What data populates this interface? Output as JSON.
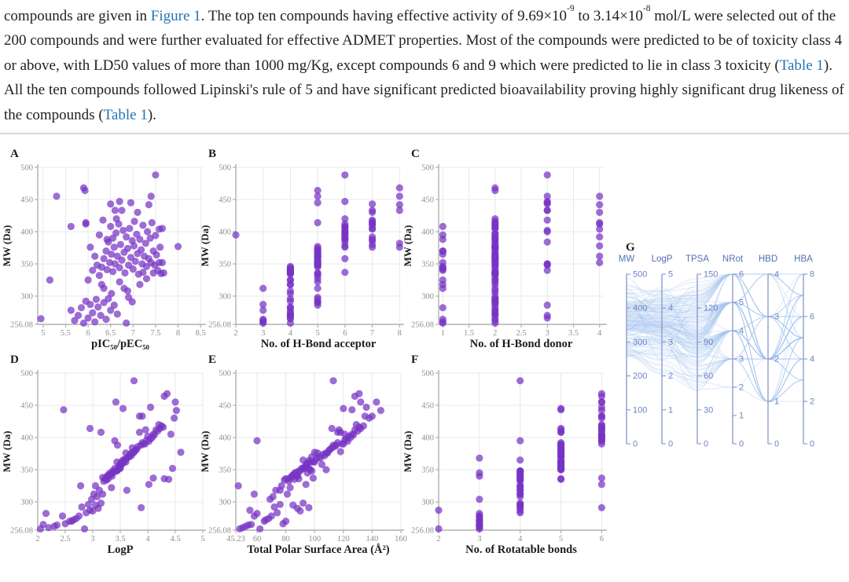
{
  "paragraph": {
    "segments": [
      {
        "text": "compounds are given in ",
        "style": "normal"
      },
      {
        "text": "Figure 1",
        "style": "link"
      },
      {
        "text": ". The top ten compounds having effective activity of 9.69×10",
        "style": "normal"
      },
      {
        "text": "-9",
        "style": "sup"
      },
      {
        "text": " to 3.14×10",
        "style": "normal"
      },
      {
        "text": "-8",
        "style": "sup"
      },
      {
        "text": " mol/L were selected out of the 200 compounds and were further evaluated for effective ADMET properties. Most of the compounds were predicted to be of toxicity class 4 or above, with LD50 values of more than 1000 mg/Kg, except compounds 6 and 9 which were predicted to lie in class 3 toxicity (",
        "style": "normal"
      },
      {
        "text": "Table 1",
        "style": "link"
      },
      {
        "text": "). All the ten compounds followed Lipinski's rule of 5 and have significant predicted bioavailability proving highly significant drug likeness of the compounds (",
        "style": "normal"
      },
      {
        "text": "Table 1",
        "style": "link"
      },
      {
        "text": ").",
        "style": "normal"
      }
    ]
  },
  "colors": {
    "link": "#2374b5",
    "text": "#212121",
    "divider": "#d9d9d9",
    "dot": "#7733c4",
    "dot_opacity": 0.72,
    "grid": "#e8e8ee",
    "spine": "#b0b0b0",
    "tick_text": "#8f8f8f",
    "title_text": "#1c1c1c",
    "pc_line": "#a6c6ee",
    "pc_line_opacity": 0.38,
    "pc_axis": "#8695cc",
    "pc_label": "#5570b8",
    "pc_tick_text": "#6d83c2"
  },
  "chart_data": {
    "type": "multi-panel-scatter-and-parallel-coordinates",
    "description": "Physicochemical properties of 200 screened compounds; panels A-F scatter MW (Da) vs property, panel G parallel coordinates",
    "ylabel": "MW (Da)",
    "ylim": [
      256.08,
      500
    ],
    "yticks": [
      256.08,
      300,
      350,
      400,
      450,
      500
    ],
    "ytick_labels": [
      "256.08",
      "300",
      "350",
      "400",
      "450",
      "500"
    ],
    "compounds_columns": [
      "pIC50",
      "MW",
      "HBA",
      "HBD",
      "LogP",
      "TPSA",
      "NRot"
    ],
    "compounds": [
      [
        5.62,
        278,
        3,
        2,
        2.45,
        58,
        3
      ],
      [
        5.7,
        262,
        3,
        2,
        2.3,
        52,
        3
      ],
      [
        5.78,
        270,
        4,
        2,
        2.62,
        65,
        3
      ],
      [
        5.85,
        282,
        4,
        1,
        2.15,
        60,
        3
      ],
      [
        5.9,
        258,
        3,
        1,
        2.05,
        48,
        2
      ],
      [
        5.95,
        292,
        4,
        2,
        2.8,
        72,
        4
      ],
      [
        6.0,
        266,
        4,
        3,
        2.5,
        78,
        3
      ],
      [
        6.05,
        287,
        3,
        2,
        2.95,
        55,
        2
      ],
      [
        6.1,
        274,
        4,
        2,
        2.7,
        68,
        3
      ],
      [
        6.15,
        260,
        3,
        1,
        2.2,
        50,
        3
      ],
      [
        6.18,
        295,
        5,
        2,
        3.05,
        85,
        4
      ],
      [
        6.22,
        283,
        4,
        2,
        2.88,
        74,
        4
      ],
      [
        6.28,
        270,
        4,
        3,
        2.58,
        80,
        3
      ],
      [
        6.35,
        290,
        5,
        2,
        3.1,
        88,
        4
      ],
      [
        6.4,
        264,
        3,
        1,
        2.35,
        54,
        3
      ],
      [
        6.45,
        296,
        4,
        2,
        2.92,
        76,
        4
      ],
      [
        6.5,
        278,
        4,
        2,
        2.75,
        70,
        3
      ],
      [
        6.58,
        286,
        5,
        3,
        3.0,
        90,
        4
      ],
      [
        6.65,
        272,
        4,
        2,
        2.65,
        66,
        3
      ],
      [
        6.85,
        258,
        4,
        2,
        2.85,
        62,
        3
      ],
      [
        6.9,
        298,
        5,
        2,
        3.15,
        92,
        4
      ],
      [
        4.95,
        265,
        4,
        2,
        2.1,
        56,
        3
      ],
      [
        6.25,
        332,
        5,
        2,
        3.2,
        82,
        4
      ],
      [
        6.3,
        345,
        5,
        2,
        3.35,
        95,
        3
      ],
      [
        6.35,
        358,
        6,
        2,
        3.5,
        105,
        5
      ],
      [
        6.4,
        370,
        5,
        1,
        3.65,
        98,
        5
      ],
      [
        6.42,
        341,
        4,
        2,
        3.28,
        88,
        4
      ],
      [
        6.45,
        384,
        6,
        3,
        3.72,
        112,
        5
      ],
      [
        6.48,
        352,
        5,
        2,
        3.4,
        96,
        5
      ],
      [
        6.5,
        408,
        6,
        2,
        3.85,
        118,
        5
      ],
      [
        6.52,
        365,
        5,
        1,
        3.55,
        92,
        4
      ],
      [
        6.55,
        390,
        6,
        2,
        3.95,
        120,
        5
      ],
      [
        6.55,
        338,
        4,
        2,
        3.18,
        84,
        4
      ],
      [
        6.58,
        376,
        7,
        2,
        3.6,
        102,
        5
      ],
      [
        6.6,
        350,
        5,
        3,
        3.45,
        108,
        5
      ],
      [
        6.62,
        398,
        6,
        2,
        4.05,
        122,
        6
      ],
      [
        6.65,
        362,
        5,
        2,
        3.52,
        100,
        5
      ],
      [
        6.68,
        412,
        7,
        4,
        4.15,
        128,
        6
      ],
      [
        6.7,
        344,
        4,
        1,
        3.3,
        86,
        4
      ],
      [
        6.72,
        380,
        7,
        2,
        3.78,
        110,
        5
      ],
      [
        6.75,
        356,
        5,
        2,
        3.48,
        94,
        5
      ],
      [
        6.78,
        402,
        6,
        3,
        4.0,
        124,
        6
      ],
      [
        6.8,
        368,
        5,
        2,
        3.62,
        104,
        3
      ],
      [
        6.82,
        336,
        4,
        2,
        3.22,
        80,
        4
      ],
      [
        6.85,
        392,
        7,
        4,
        3.9,
        116,
        5
      ],
      [
        6.88,
        374,
        5,
        2,
        3.68,
        106,
        5
      ],
      [
        6.9,
        348,
        5,
        3,
        3.42,
        98,
        4
      ],
      [
        6.92,
        405,
        7,
        2,
        4.1,
        126,
        6
      ],
      [
        6.95,
        360,
        5,
        2,
        3.55,
        95,
        5
      ],
      [
        6.98,
        386,
        7,
        2,
        3.82,
        114,
        5
      ],
      [
        7.0,
        342,
        4,
        1,
        3.32,
        85,
        4
      ],
      [
        7.02,
        378,
        6,
        4,
        3.75,
        118,
        5
      ],
      [
        7.05,
        354,
        5,
        2,
        3.5,
        93,
        5
      ],
      [
        7.08,
        396,
        6,
        2,
        3.98,
        121,
        6
      ],
      [
        7.1,
        366,
        5,
        2,
        3.58,
        101,
        5
      ],
      [
        7.12,
        334,
        4,
        2,
        3.25,
        79,
        4
      ],
      [
        7.15,
        388,
        7,
        1,
        3.88,
        115,
        5
      ],
      [
        7.18,
        372,
        5,
        2,
        3.7,
        107,
        5
      ],
      [
        7.2,
        350,
        5,
        3,
        3.45,
        97,
        5
      ],
      [
        7.22,
        410,
        7,
        2,
        4.18,
        130,
        6
      ],
      [
        7.25,
        362,
        5,
        4,
        3.6,
        99,
        5
      ],
      [
        7.28,
        382,
        8,
        2,
        3.8,
        111,
        5
      ],
      [
        7.3,
        346,
        4,
        1,
        3.38,
        87,
        4
      ],
      [
        7.32,
        400,
        6,
        3,
        4.08,
        125,
        6
      ],
      [
        7.35,
        358,
        5,
        2,
        3.52,
        94,
        5
      ],
      [
        7.38,
        390,
        6,
        2,
        3.92,
        119,
        6
      ],
      [
        7.4,
        352,
        5,
        4,
        3.48,
        91,
        5
      ],
      [
        7.42,
        414,
        7,
        4,
        4.22,
        132,
        6
      ],
      [
        7.45,
        370,
        5,
        1,
        3.66,
        103,
        5
      ],
      [
        7.48,
        348,
        5,
        2,
        3.44,
        90,
        4
      ],
      [
        7.5,
        394,
        6,
        2,
        4.02,
        123,
        6
      ],
      [
        7.52,
        364,
        5,
        2,
        3.58,
        96,
        5
      ],
      [
        7.55,
        340,
        4,
        3,
        3.35,
        88,
        3
      ],
      [
        7.58,
        404,
        7,
        4,
        4.12,
        127,
        6
      ],
      [
        7.6,
        376,
        8,
        2,
        3.74,
        109,
        5
      ],
      [
        7.65,
        352,
        5,
        1,
        3.5,
        92,
        5
      ],
      [
        7.68,
        336,
        4,
        2,
        3.28,
        82,
        4
      ],
      [
        6.33,
        418,
        7,
        3,
        4.25,
        134,
        6
      ],
      [
        6.63,
        420,
        6,
        2,
        4.2,
        129,
        6
      ],
      [
        7.03,
        416,
        7,
        2,
        4.28,
        131,
        6
      ],
      [
        6.2,
        348,
        5,
        2,
        3.36,
        89,
        4
      ],
      [
        6.15,
        362,
        5,
        2,
        3.44,
        97,
        5
      ],
      [
        6.1,
        340,
        4,
        1,
        3.26,
        84,
        4
      ],
      [
        6.05,
        376,
        6,
        2,
        3.7,
        108,
        5
      ],
      [
        5.95,
        412,
        6,
        2,
        3.96,
        117,
        5
      ],
      [
        5.9,
        468,
        8,
        2,
        4.35,
        131,
        6
      ],
      [
        5.93,
        464,
        5,
        2,
        4.3,
        128,
        6
      ],
      [
        5.3,
        455,
        5,
        3,
        3.42,
        132,
        6
      ],
      [
        6.5,
        443,
        7,
        3,
        2.47,
        126,
        5
      ],
      [
        7.5,
        488,
        6,
        3,
        3.75,
        113,
        4
      ],
      [
        6.7,
        447,
        6,
        3,
        4.05,
        136,
        6
      ],
      [
        6.6,
        433,
        8,
        3,
        3.85,
        140,
        6
      ],
      [
        6.75,
        433,
        7,
        3,
        3.9,
        135,
        6
      ],
      [
        7.1,
        430,
        7,
        4,
        4.48,
        138,
        6
      ],
      [
        6.95,
        445,
        5,
        3,
        3.55,
        120,
        5
      ],
      [
        7.4,
        455,
        8,
        4,
        4.5,
        143,
        6
      ],
      [
        7.35,
        442,
        8,
        4,
        4.52,
        146,
        6
      ],
      [
        5.15,
        325,
        4,
        1,
        3.05,
        47,
        4
      ],
      [
        8.0,
        377,
        5,
        2,
        4.6,
        100,
        5
      ],
      [
        7.65,
        405,
        6,
        2,
        4.42,
        121,
        6
      ],
      [
        7.62,
        335,
        5,
        2,
        4.38,
        86,
        5
      ],
      [
        5.62,
        408,
        6,
        1,
        3.15,
        116,
        5
      ],
      [
        5.95,
        414,
        5,
        2,
        2.95,
        112,
        5
      ],
      [
        6.0,
        325,
        4,
        2,
        2.78,
        77,
        4
      ],
      [
        6.3,
        318,
        4,
        2,
        3.12,
        73,
        4
      ],
      [
        6.7,
        322,
        5,
        2,
        3.34,
        83,
        4
      ],
      [
        7.15,
        318,
        4,
        1,
        3.62,
        76,
        4
      ],
      [
        6.88,
        308,
        4,
        2,
        3.08,
        71,
        4
      ],
      [
        6.52,
        304,
        4,
        2,
        2.98,
        69,
        3
      ],
      [
        6.35,
        312,
        5,
        2,
        3.02,
        81,
        4
      ],
      [
        7.58,
        352,
        5,
        2,
        4.45,
        93,
        5
      ],
      [
        7.45,
        336,
        5,
        2,
        4.3,
        89,
        5
      ],
      [
        6.42,
        388,
        6,
        2,
        3.45,
        113,
        5
      ],
      [
        6.25,
        395,
        2,
        1,
        3.4,
        60,
        4
      ],
      [
        6.8,
        312,
        3,
        1,
        3.18,
        58,
        4
      ],
      [
        6.98,
        291,
        5,
        2,
        3.88,
        96,
        6
      ],
      [
        7.3,
        327,
        5,
        2,
        4.02,
        94,
        6
      ],
      [
        7.22,
        337,
        6,
        2,
        4.1,
        99,
        6
      ]
    ],
    "panels": [
      {
        "label": "A",
        "type": "scatter",
        "xkey": 0,
        "xlabel": "pIC₅₀/pEC₅₀",
        "xlim": [
          4.88,
          8.55
        ],
        "xticks": [
          5,
          5.5,
          6,
          6.5,
          7,
          7.5,
          8,
          8.5
        ],
        "xtick_labels": [
          "5",
          "5.5",
          "6",
          "6.5",
          "7",
          "7.5",
          "8",
          "8.5"
        ]
      },
      {
        "label": "B",
        "type": "scatter",
        "xkey": 2,
        "xlabel": "No. of H-Bond acceptor",
        "xlim": [
          2,
          8.05
        ],
        "xticks": [
          2,
          3,
          4,
          5,
          6,
          7,
          8
        ],
        "xtick_labels": [
          "2",
          "3",
          "4",
          "5",
          "6",
          "7",
          "8"
        ]
      },
      {
        "label": "C",
        "type": "scatter",
        "xkey": 3,
        "xlabel": "No. of H-Bond donor",
        "xlim": [
          0.92,
          4.08
        ],
        "xticks": [
          1,
          1.5,
          2,
          2.5,
          3,
          3.5,
          4
        ],
        "xtick_labels": [
          "1",
          "1.5",
          "2",
          "2.5",
          "3",
          "3.5",
          "4"
        ]
      },
      {
        "label": "D",
        "type": "scatter",
        "xkey": 4,
        "xlabel": "LogP",
        "xlim": [
          2,
          5
        ],
        "xticks": [
          2,
          2.5,
          3,
          3.5,
          4,
          4.5,
          5
        ],
        "xtick_labels": [
          "2",
          "2.5",
          "3",
          "3.5",
          "4",
          "4.5",
          "5"
        ]
      },
      {
        "label": "E",
        "type": "scatter",
        "xkey": 5,
        "xlabel": "Total Polar Surface Area (Å²)",
        "xlim": [
          45.23,
          160
        ],
        "xticks": [
          45.23,
          60,
          80,
          100,
          120,
          140,
          160
        ],
        "xtick_labels": [
          "45.23",
          "60",
          "80",
          "100",
          "120",
          "140",
          "160"
        ]
      },
      {
        "label": "F",
        "type": "scatter",
        "xkey": 6,
        "xlabel": "No. of Rotatable bonds",
        "xlim": [
          2,
          6.05
        ],
        "xticks": [
          2,
          3,
          4,
          5,
          6
        ],
        "xtick_labels": [
          "2",
          "3",
          "4",
          "5",
          "6"
        ]
      },
      {
        "label": "G",
        "type": "parallel",
        "axes": [
          {
            "name": "MW",
            "key": 1,
            "max": 500,
            "ticks": [
              0,
              100,
              200,
              300,
              400,
              500
            ]
          },
          {
            "name": "LogP",
            "key": 4,
            "max": 5,
            "ticks": [
              0,
              1,
              2,
              3,
              4,
              5
            ]
          },
          {
            "name": "TPSA",
            "key": 5,
            "max": 150,
            "ticks": [
              0,
              30,
              60,
              90,
              120,
              150
            ]
          },
          {
            "name": "NRot",
            "key": 6,
            "max": 6,
            "ticks": [
              0,
              1,
              2,
              3,
              4,
              5,
              6
            ]
          },
          {
            "name": "HBD",
            "key": 3,
            "max": 4,
            "ticks": [
              0,
              1,
              2,
              3,
              4
            ]
          },
          {
            "name": "HBA",
            "key": 2,
            "max": 8,
            "ticks": [
              0,
              2,
              4,
              6,
              8
            ]
          }
        ]
      }
    ]
  }
}
